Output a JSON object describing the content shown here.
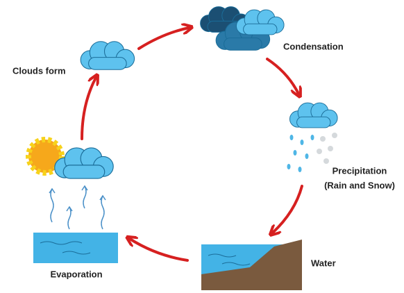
{
  "nodes": [
    {
      "label": "Clouds form"
    },
    {
      "label": "Condensation"
    },
    {
      "lines": [
        "Precipitation",
        "(Rain and Snow)"
      ]
    },
    {
      "label": "Water"
    },
    {
      "label": "Evaporation"
    }
  ]
}
